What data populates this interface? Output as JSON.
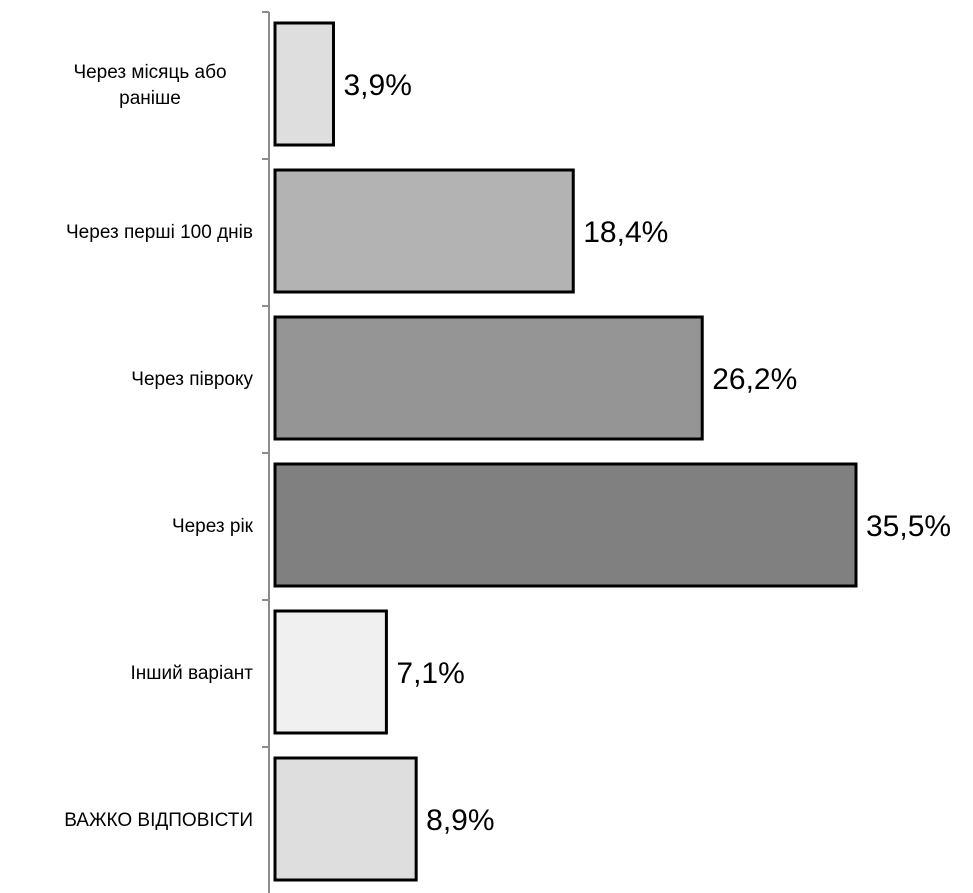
{
  "chart_data": {
    "type": "bar",
    "orientation": "horizontal",
    "categories": [
      "Через місяць або раніше",
      "Через перші 100 днів",
      "Через півроку",
      "Через рік",
      "Інший варіант",
      "ВАЖКО ВІДПОВІСТИ"
    ],
    "category_label_lines": [
      [
        "Через місяць або",
        "раніше"
      ],
      [
        "Через перші 100 днів"
      ],
      [
        "Через півроку"
      ],
      [
        "Через рік"
      ],
      [
        "Інший варіант"
      ],
      [
        "ВАЖКО ВІДПОВІСТИ"
      ]
    ],
    "values": [
      3.9,
      18.4,
      26.2,
      35.5,
      7.1,
      8.9
    ],
    "value_labels": [
      "3,9%",
      "18,4%",
      "26,2%",
      "35,5%",
      "7,1%",
      "8,9%"
    ],
    "bar_colors": [
      "#dedede",
      "#b3b3b3",
      "#959595",
      "#808080",
      "#f0f0f0",
      "#dedede"
    ],
    "bar_border_color": "#000000",
    "xlim": [
      0,
      35.5
    ],
    "grid": false,
    "legend": "none",
    "title": "",
    "xlabel": "",
    "ylabel": ""
  }
}
